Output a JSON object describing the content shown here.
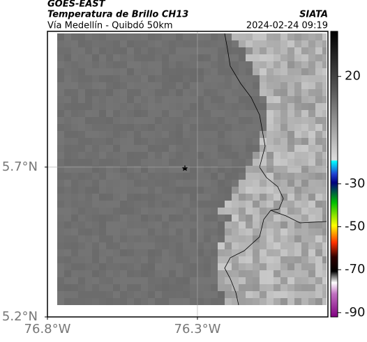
{
  "header": {
    "source": "GOES-EAST",
    "title": "Temperatura de Brillo CH13",
    "subtitle": "Vía Medellín - Quibdó 50km",
    "org": "SIATA",
    "timestamp": "2024-02-24 09:19"
  },
  "map": {
    "xlim": [
      -76.8,
      -75.865
    ],
    "ylim": [
      5.2,
      6.153
    ],
    "xticks": [
      {
        "value": -76.8,
        "label": "76.8°W"
      },
      {
        "value": -76.3,
        "label": "76.3°W"
      }
    ],
    "yticks": [
      {
        "value": 5.2,
        "label": "5.2°N"
      },
      {
        "value": 5.7,
        "label": "5.7°N"
      }
    ]
  },
  "colorbar": {
    "lim": [
      -92,
      41
    ],
    "ticks": [
      20,
      -30,
      -50,
      -70,
      -90
    ]
  }
}
